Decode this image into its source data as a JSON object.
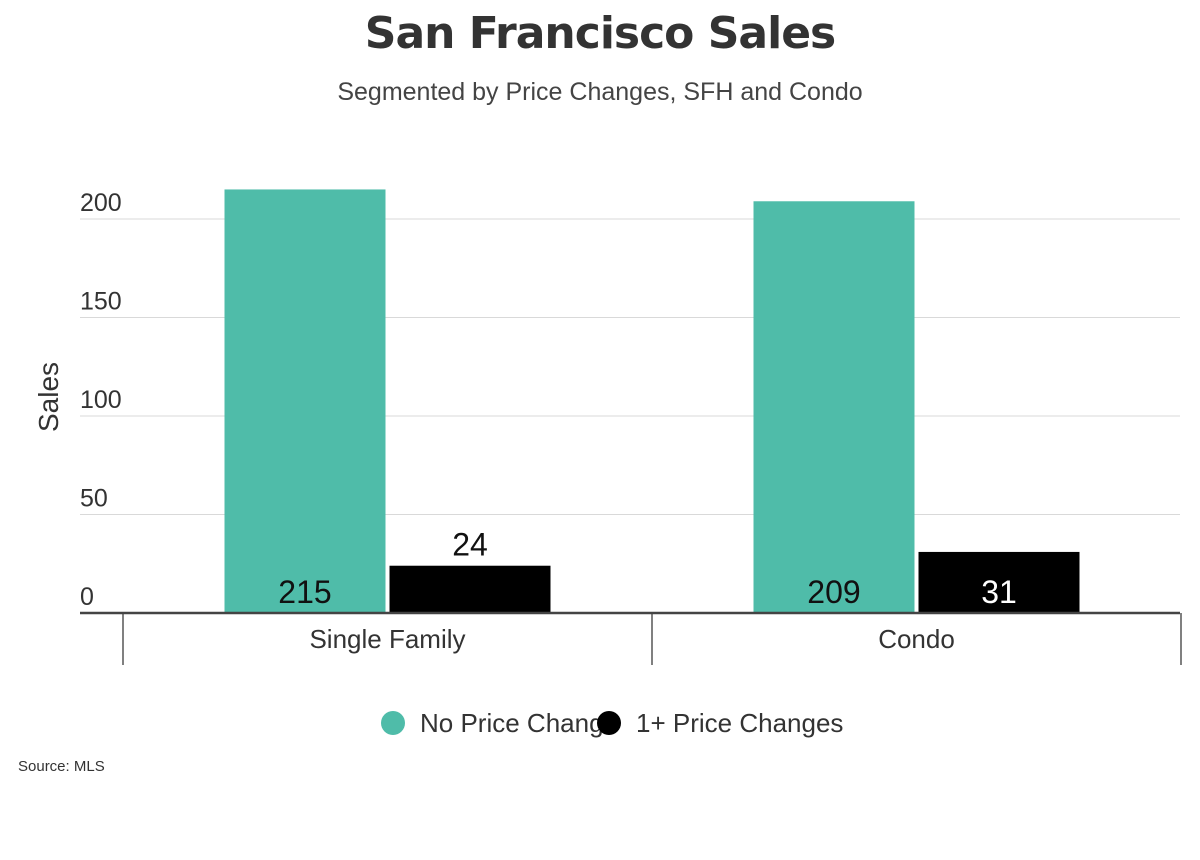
{
  "title": "San Francisco Sales",
  "subtitle": "Segmented by Price Changes, SFH and Condo",
  "source": "Source:  MLS",
  "colors": {
    "no_price_change": "#4fbca9",
    "price_changes": "#000000",
    "grid": "#d9d9d9",
    "axis": "#333333",
    "text": "#333333"
  },
  "chart_data": {
    "type": "bar",
    "categories": [
      "Single Family",
      "Condo"
    ],
    "series": [
      {
        "name": "No Price Change",
        "values": [
          215,
          209
        ],
        "color": "#4fbca9"
      },
      {
        "name": "1+ Price Changes",
        "values": [
          24,
          31
        ],
        "color": "#000000"
      }
    ],
    "ylabel": "Sales",
    "xlabel": "",
    "yticks": [
      0,
      50,
      100,
      150,
      200
    ],
    "ylim": [
      0,
      220
    ],
    "grid": true,
    "legend_position": "bottom"
  }
}
